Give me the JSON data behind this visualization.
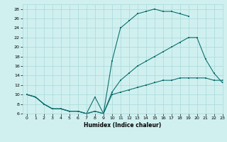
{
  "line1_x": [
    0,
    1,
    2,
    3,
    4,
    5,
    6,
    7,
    8,
    9,
    10,
    11,
    12,
    13,
    14,
    15,
    16,
    17,
    18,
    19,
    20,
    21,
    22,
    23
  ],
  "line1_y": [
    10,
    9.5,
    8,
    7,
    7,
    6.5,
    6.5,
    6,
    6.5,
    6,
    17,
    24,
    25.5,
    27,
    27.5,
    28,
    27.5,
    27.5,
    27,
    26.5,
    null,
    null,
    null,
    null
  ],
  "line2_x": [
    0,
    1,
    2,
    3,
    4,
    5,
    6,
    7,
    8,
    9,
    10,
    11,
    12,
    13,
    14,
    15,
    16,
    17,
    18,
    19,
    20,
    21,
    22,
    23
  ],
  "line2_y": [
    10,
    9.5,
    8,
    7,
    7,
    6.5,
    6.5,
    6,
    6.5,
    6,
    10.5,
    13,
    14.5,
    16,
    17,
    18,
    19,
    20,
    21,
    22,
    22,
    17.5,
    14.5,
    12.5
  ],
  "line3_x": [
    0,
    1,
    2,
    3,
    4,
    5,
    6,
    7,
    8,
    9,
    10,
    11,
    12,
    13,
    14,
    15,
    16,
    17,
    18,
    19,
    20,
    21,
    22,
    23
  ],
  "line3_y": [
    10,
    9.5,
    8,
    7,
    7,
    6.5,
    6.5,
    6,
    9.5,
    6,
    10,
    10.5,
    11,
    11.5,
    12,
    12.5,
    13,
    13,
    13.5,
    13.5,
    13.5,
    13.5,
    13,
    13
  ],
  "line_color": "#0e7070",
  "bg_color": "#d0f0f0",
  "grid_color": "#a8d8d8",
  "xlabel": "Humidex (Indice chaleur)",
  "ylim": [
    6,
    29
  ],
  "xlim": [
    -0.5,
    23
  ],
  "yticks": [
    6,
    8,
    10,
    12,
    14,
    16,
    18,
    20,
    22,
    24,
    26,
    28
  ],
  "xticks": [
    0,
    1,
    2,
    3,
    4,
    5,
    6,
    7,
    8,
    9,
    10,
    11,
    12,
    13,
    14,
    15,
    16,
    17,
    18,
    19,
    20,
    21,
    22,
    23
  ]
}
